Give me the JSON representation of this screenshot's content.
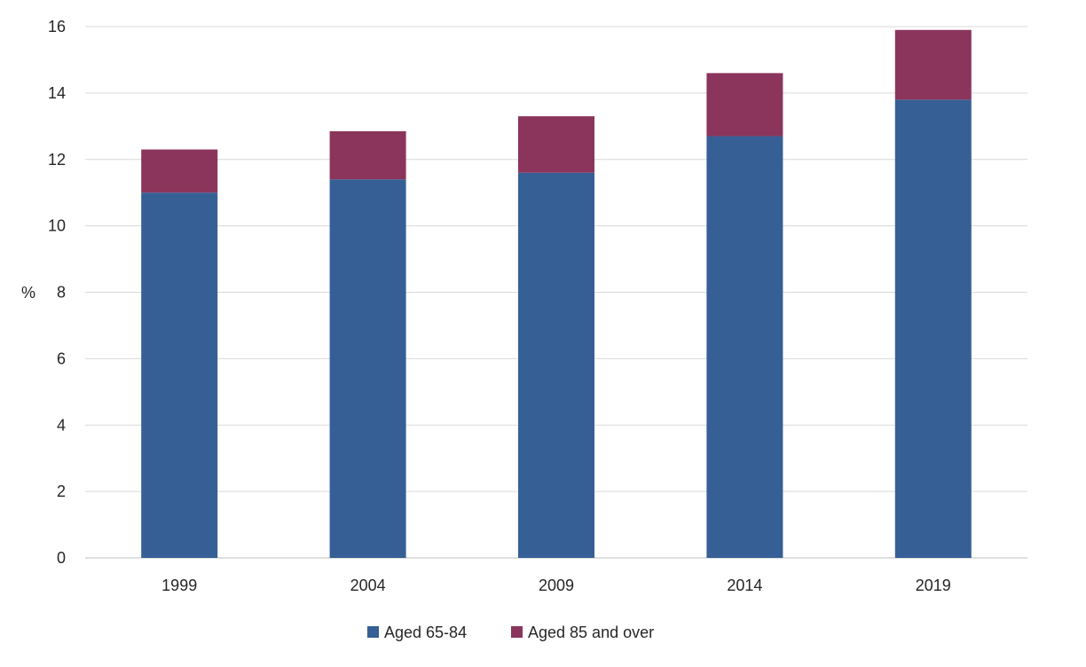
{
  "chart_data": {
    "type": "bar",
    "stacked": true,
    "ylabel": "%",
    "ylim": [
      0,
      16
    ],
    "yticks": [
      0,
      2,
      4,
      6,
      8,
      10,
      12,
      14,
      16
    ],
    "grid": true,
    "legend_position": "bottom",
    "categories": [
      "1999",
      "2004",
      "2009",
      "2014",
      "2019"
    ],
    "series": [
      {
        "name": "Aged 65-84",
        "color": "#365f96",
        "values": [
          11.0,
          11.4,
          11.6,
          12.7,
          13.8
        ]
      },
      {
        "name": "Aged 85 and over",
        "color": "#8b355c",
        "values": [
          1.3,
          1.45,
          1.7,
          1.9,
          2.1
        ]
      }
    ]
  }
}
